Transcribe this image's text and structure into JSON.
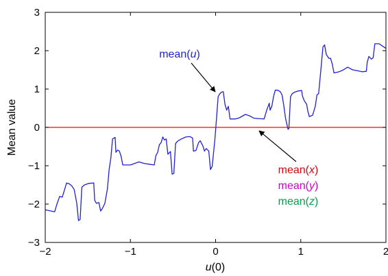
{
  "chart_data": {
    "type": "line",
    "xlabel": {
      "var": "u",
      "rest": "(0)"
    },
    "ylabel": "Mean value",
    "xlim": [
      -2,
      2
    ],
    "ylim": [
      -3,
      3
    ],
    "xticks": [
      -2,
      -1,
      0,
      1,
      2
    ],
    "xtick_labels": [
      "−2",
      "−1",
      "0",
      "1",
      "2"
    ],
    "yticks": [
      -3,
      -2,
      -1,
      0,
      1,
      2,
      3
    ],
    "ytick_labels": [
      "−3",
      "−2",
      "−1",
      "0",
      "1",
      "2",
      "3"
    ],
    "grid": false,
    "series": [
      {
        "name": "mean(u)",
        "color": "#1f1fd6",
        "points": [
          [
            -2.0,
            -2.15
          ],
          [
            -1.89,
            -2.2
          ],
          [
            -1.86,
            -1.98
          ],
          [
            -1.83,
            -1.8
          ],
          [
            -1.8,
            -1.82
          ],
          [
            -1.77,
            -1.6
          ],
          [
            -1.75,
            -1.45
          ],
          [
            -1.72,
            -1.47
          ],
          [
            -1.69,
            -1.52
          ],
          [
            -1.66,
            -1.62
          ],
          [
            -1.63,
            -1.98
          ],
          [
            -1.61,
            -2.43
          ],
          [
            -1.59,
            -2.4
          ],
          [
            -1.57,
            -1.56
          ],
          [
            -1.54,
            -1.5
          ],
          [
            -1.49,
            -1.46
          ],
          [
            -1.43,
            -1.45
          ],
          [
            -1.42,
            -1.9
          ],
          [
            -1.4,
            -1.98
          ],
          [
            -1.37,
            -1.96
          ],
          [
            -1.35,
            -2.18
          ],
          [
            -1.33,
            -2.12
          ],
          [
            -1.3,
            -1.98
          ],
          [
            -1.27,
            -1.6
          ],
          [
            -1.25,
            -1.1
          ],
          [
            -1.23,
            -0.8
          ],
          [
            -1.21,
            -0.3
          ],
          [
            -1.18,
            -0.26
          ],
          [
            -1.17,
            -0.65
          ],
          [
            -1.15,
            -0.59
          ],
          [
            -1.13,
            -0.62
          ],
          [
            -1.11,
            -0.75
          ],
          [
            -1.09,
            -0.98
          ],
          [
            -1.0,
            -0.98
          ],
          [
            -0.9,
            -0.9
          ],
          [
            -0.84,
            -0.94
          ],
          [
            -0.78,
            -0.96
          ],
          [
            -0.72,
            -0.98
          ],
          [
            -0.7,
            -0.73
          ],
          [
            -0.68,
            -0.65
          ],
          [
            -0.66,
            -0.45
          ],
          [
            -0.64,
            -0.4
          ],
          [
            -0.62,
            -0.25
          ],
          [
            -0.6,
            -0.33
          ],
          [
            -0.58,
            -0.3
          ],
          [
            -0.56,
            -0.7
          ],
          [
            -0.53,
            -0.63
          ],
          [
            -0.51,
            -1.22
          ],
          [
            -0.49,
            -1.2
          ],
          [
            -0.47,
            -0.42
          ],
          [
            -0.44,
            -0.35
          ],
          [
            -0.4,
            -0.3
          ],
          [
            -0.35,
            -0.25
          ],
          [
            -0.3,
            -0.24
          ],
          [
            -0.27,
            -0.28
          ],
          [
            -0.26,
            -0.62
          ],
          [
            -0.23,
            -0.6
          ],
          [
            -0.2,
            -0.4
          ],
          [
            -0.18,
            -0.35
          ],
          [
            -0.15,
            -0.48
          ],
          [
            -0.13,
            -0.62
          ],
          [
            -0.11,
            -0.55
          ],
          [
            -0.08,
            -0.62
          ],
          [
            -0.06,
            -1.1
          ],
          [
            -0.04,
            -1.02
          ],
          [
            -0.01,
            -0.35
          ],
          [
            0.01,
            0.2
          ],
          [
            0.03,
            0.8
          ],
          [
            0.05,
            0.88
          ],
          [
            0.07,
            0.92
          ],
          [
            0.09,
            0.93
          ],
          [
            0.11,
            0.6
          ],
          [
            0.13,
            0.45
          ],
          [
            0.15,
            0.55
          ],
          [
            0.17,
            0.22
          ],
          [
            0.23,
            0.22
          ],
          [
            0.28,
            0.25
          ],
          [
            0.35,
            0.34
          ],
          [
            0.4,
            0.3
          ],
          [
            0.45,
            0.24
          ],
          [
            0.5,
            0.23
          ],
          [
            0.57,
            0.22
          ],
          [
            0.6,
            0.45
          ],
          [
            0.63,
            0.63
          ],
          [
            0.64,
            0.45
          ],
          [
            0.66,
            0.55
          ],
          [
            0.68,
            0.8
          ],
          [
            0.7,
            0.97
          ],
          [
            0.73,
            0.97
          ],
          [
            0.76,
            0.93
          ],
          [
            0.78,
            0.85
          ],
          [
            0.8,
            0.58
          ],
          [
            0.82,
            0.25
          ],
          [
            0.84,
            0.05
          ],
          [
            0.85,
            -0.05
          ],
          [
            0.86,
            -0.03
          ],
          [
            0.88,
            0.8
          ],
          [
            0.9,
            0.88
          ],
          [
            0.93,
            0.92
          ],
          [
            0.97,
            0.95
          ],
          [
            1.01,
            0.96
          ],
          [
            1.02,
            0.82
          ],
          [
            1.04,
            0.7
          ],
          [
            1.07,
            0.6
          ],
          [
            1.08,
            0.45
          ],
          [
            1.1,
            0.28
          ],
          [
            1.14,
            0.32
          ],
          [
            1.17,
            0.55
          ],
          [
            1.19,
            0.85
          ],
          [
            1.21,
            0.88
          ],
          [
            1.24,
            1.6
          ],
          [
            1.26,
            2.1
          ],
          [
            1.28,
            2.15
          ],
          [
            1.3,
            1.9
          ],
          [
            1.33,
            1.8
          ],
          [
            1.35,
            1.8
          ],
          [
            1.37,
            1.65
          ],
          [
            1.39,
            1.42
          ],
          [
            1.45,
            1.45
          ],
          [
            1.5,
            1.5
          ],
          [
            1.55,
            1.57
          ],
          [
            1.61,
            1.5
          ],
          [
            1.66,
            1.48
          ],
          [
            1.72,
            1.45
          ],
          [
            1.77,
            1.46
          ],
          [
            1.78,
            1.7
          ],
          [
            1.8,
            1.85
          ],
          [
            1.83,
            1.78
          ],
          [
            1.85,
            1.82
          ],
          [
            1.87,
            2.18
          ],
          [
            1.92,
            2.18
          ],
          [
            1.96,
            2.12
          ],
          [
            2.0,
            2.06
          ]
        ]
      },
      {
        "name": "mean(x)",
        "color": "#ff0000",
        "points": [
          [
            -2,
            0
          ],
          [
            2,
            0
          ]
        ]
      }
    ],
    "annotations": [
      {
        "id": "u",
        "prefix": "mean(",
        "var": "u",
        "suffix": ")",
        "color": "#1f1fd6"
      },
      {
        "id": "x",
        "prefix": "mean(",
        "var": "x",
        "suffix": ")",
        "color": "#e8000b"
      },
      {
        "id": "y",
        "prefix": "mean(",
        "var": "y",
        "suffix": ")",
        "color": "#cc00cc"
      },
      {
        "id": "z",
        "prefix": "mean(",
        "var": "z",
        "suffix": ")",
        "color": "#00a050"
      }
    ]
  }
}
